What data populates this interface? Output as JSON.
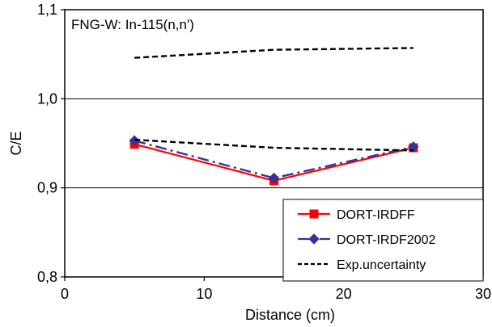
{
  "chart_data": {
    "type": "line",
    "title": "FNG-W: In-115(n,n')",
    "xlabel": "Distance (cm)",
    "ylabel": "C/E",
    "xlim": [
      0,
      30
    ],
    "ylim": [
      0.8,
      1.1
    ],
    "x_ticks": [
      "0",
      "10",
      "20",
      "30"
    ],
    "y_ticks": [
      "0,8",
      "0,9",
      "1,0",
      "1,1"
    ],
    "grid": "horizontal",
    "legend_position": "bottom-right",
    "series": [
      {
        "name": "DORT-IRDFF",
        "color": "#ff0000",
        "marker": "square",
        "style": "solid",
        "x": [
          5,
          15,
          25
        ],
        "y": [
          0.949,
          0.908,
          0.945
        ]
      },
      {
        "name": "DORT-IRDF2002",
        "color": "#333399",
        "marker": "diamond",
        "style": "dashdot",
        "x": [
          5,
          15,
          25
        ],
        "y": [
          0.953,
          0.911,
          0.946
        ]
      },
      {
        "name": "Exp.uncertainty",
        "color": "#000000",
        "marker": "none",
        "style": "dashed",
        "x": [
          5,
          15,
          25
        ],
        "y": [
          0.954,
          0.945,
          0.942
        ]
      },
      {
        "name": "",
        "color": "#000000",
        "marker": "none",
        "style": "dashed",
        "in_legend": false,
        "x": [
          5,
          15,
          25
        ],
        "y": [
          1.046,
          1.055,
          1.057
        ]
      }
    ]
  }
}
